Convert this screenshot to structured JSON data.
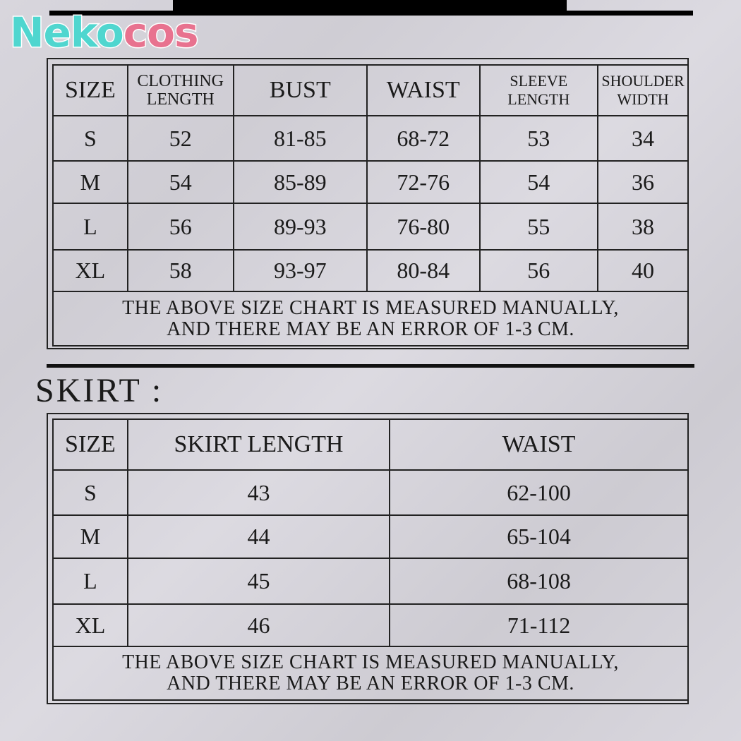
{
  "brand": {
    "logo_part1": "Neko",
    "logo_part2": "cos",
    "color1": "#4fd6cf",
    "color2": "#e8728f"
  },
  "top_table": {
    "headers": [
      "SIZE",
      "CLOTHING LENGTH",
      "BUST",
      "WAIST",
      "SLEEVE LENGTH",
      "SHOULDER WIDTH"
    ],
    "rows": [
      [
        "S",
        "52",
        "81-85",
        "68-72",
        "53",
        "34"
      ],
      [
        "M",
        "54",
        "85-89",
        "72-76",
        "54",
        "36"
      ],
      [
        "L",
        "56",
        "89-93",
        "76-80",
        "55",
        "38"
      ],
      [
        "XL",
        "58",
        "93-97",
        "80-84",
        "56",
        "40"
      ]
    ],
    "note_line1": "THE ABOVE SIZE CHART IS MEASURED MANUALLY,",
    "note_line2": "AND THERE MAY BE AN ERROR OF 1-3 CM."
  },
  "skirt": {
    "title": "SKIRT :",
    "headers": [
      "SIZE",
      "SKIRT LENGTH",
      "WAIST"
    ],
    "rows": [
      [
        "S",
        "43",
        "62-100"
      ],
      [
        "M",
        "44",
        "65-104"
      ],
      [
        "L",
        "45",
        "68-108"
      ],
      [
        "XL",
        "46",
        "71-112"
      ]
    ],
    "note_line1": "THE ABOVE SIZE CHART IS MEASURED MANUALLY,",
    "note_line2": "AND THERE MAY BE AN ERROR OF 1-3 CM."
  }
}
